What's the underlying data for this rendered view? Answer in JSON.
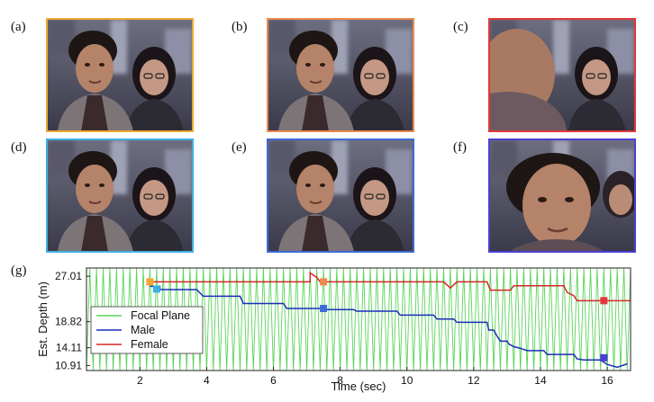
{
  "panels": [
    {
      "label": "(a)",
      "border": "#f0a830",
      "focus": "both"
    },
    {
      "label": "(b)",
      "border": "#ee8a4c",
      "focus": "female"
    },
    {
      "label": "(c)",
      "border": "#e2383a",
      "focus": "female-far"
    },
    {
      "label": "(d)",
      "border": "#3fb0e2",
      "focus": "both"
    },
    {
      "label": "(e)",
      "border": "#3d6bd6",
      "focus": "male"
    },
    {
      "label": "(f)",
      "border": "#4a3fd6",
      "focus": "male-close"
    }
  ],
  "chart_label": "(g)",
  "chart_data": {
    "type": "line",
    "xlabel": "Time (sec)",
    "ylabel": "Est. Depth (m)",
    "xlim": [
      0.4,
      16.7
    ],
    "ylim": [
      10.0,
      28.5
    ],
    "xticks": [
      2,
      4,
      6,
      8,
      10,
      12,
      14,
      16
    ],
    "yticks": [
      10.91,
      14.11,
      18.82,
      27.01
    ],
    "legend_position": "bottom-left",
    "series": [
      {
        "name": "Focal Plane",
        "color": "#5ad35a",
        "sweep": {
          "low": 10.0,
          "high": 28.5,
          "period": 0.2,
          "start": 0.4,
          "end": 16.7
        }
      },
      {
        "name": "Male",
        "color": "#1a2fb8",
        "points": [
          [
            2.3,
            25.2
          ],
          [
            2.6,
            25.2
          ],
          [
            2.6,
            24.6
          ],
          [
            3.7,
            24.6
          ],
          [
            3.9,
            23.4
          ],
          [
            5.0,
            23.4
          ],
          [
            5.1,
            22.1
          ],
          [
            6.3,
            22.1
          ],
          [
            6.4,
            21.2
          ],
          [
            7.5,
            21.2
          ],
          [
            7.6,
            21.0
          ],
          [
            8.4,
            21.0
          ],
          [
            8.5,
            20.7
          ],
          [
            9.7,
            20.7
          ],
          [
            9.8,
            20.0
          ],
          [
            10.8,
            20.0
          ],
          [
            10.9,
            19.3
          ],
          [
            11.4,
            19.3
          ],
          [
            11.5,
            18.7
          ],
          [
            12.4,
            18.7
          ],
          [
            12.45,
            17.3
          ],
          [
            12.6,
            17.3
          ],
          [
            12.7,
            16.2
          ],
          [
            12.8,
            15.3
          ],
          [
            13.0,
            15.3
          ],
          [
            13.05,
            14.8
          ],
          [
            13.2,
            14.3
          ],
          [
            13.4,
            14.0
          ],
          [
            13.6,
            13.6
          ],
          [
            14.1,
            13.6
          ],
          [
            14.2,
            12.9
          ],
          [
            15.0,
            12.9
          ],
          [
            15.1,
            12.1
          ],
          [
            15.3,
            11.9
          ],
          [
            15.8,
            11.9
          ],
          [
            16.0,
            11.1
          ],
          [
            16.3,
            10.6
          ],
          [
            16.6,
            11.2
          ]
        ]
      },
      {
        "name": "Female",
        "color": "#d62828",
        "points": [
          [
            2.3,
            26.0
          ],
          [
            7.1,
            26.0
          ],
          [
            7.1,
            27.6
          ],
          [
            7.3,
            26.8
          ],
          [
            7.4,
            26.0
          ],
          [
            11.1,
            26.0
          ],
          [
            11.3,
            24.9
          ],
          [
            11.5,
            26.0
          ],
          [
            12.4,
            26.0
          ],
          [
            12.5,
            24.5
          ],
          [
            13.1,
            24.5
          ],
          [
            13.2,
            25.3
          ],
          [
            14.7,
            25.3
          ],
          [
            14.8,
            24.1
          ],
          [
            15.0,
            23.5
          ],
          [
            15.1,
            22.6
          ],
          [
            16.7,
            22.6
          ]
        ]
      }
    ],
    "markers": [
      {
        "x": 2.3,
        "y": 26.0,
        "color": "#f0a830"
      },
      {
        "x": 2.5,
        "y": 24.7,
        "color": "#3fb0e2"
      },
      {
        "x": 7.5,
        "y": 26.0,
        "color": "#ee8a4c"
      },
      {
        "x": 7.5,
        "y": 21.2,
        "color": "#3d6bd6"
      },
      {
        "x": 15.9,
        "y": 22.6,
        "color": "#e2383a"
      },
      {
        "x": 15.9,
        "y": 12.3,
        "color": "#4a3fd6"
      }
    ]
  }
}
